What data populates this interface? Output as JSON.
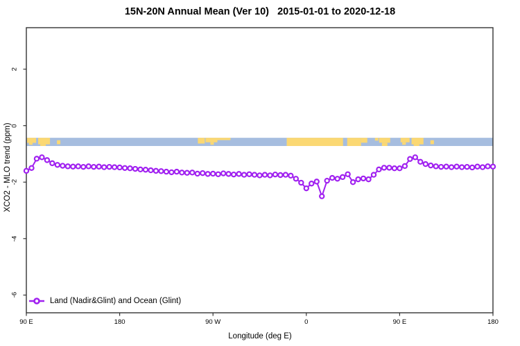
{
  "title": "15N-20N Annual Mean (Ver 10)   2015-01-01 to 2020-12-18",
  "chart_data": {
    "type": "line",
    "title": "15N-20N Annual Mean (Ver 10)   2015-01-01 to 2020-12-18",
    "xlabel": "Longitude (deg E)",
    "ylabel": "XCO2 - MLO trend (ppm)",
    "xlim": [
      90,
      540
    ],
    "ylim": [
      -6.8,
      3.4
    ],
    "grid": false,
    "x_ticks": [
      {
        "lon": 90,
        "label": "90 E"
      },
      {
        "lon": 180,
        "label": "180"
      },
      {
        "lon": 270,
        "label": "90 W"
      },
      {
        "lon": 360,
        "label": "0"
      },
      {
        "lon": 450,
        "label": "90 E"
      },
      {
        "lon": 540,
        "label": "180"
      }
    ],
    "y_ticks": [
      {
        "value": 2,
        "label": "2"
      },
      {
        "value": 0,
        "label": "0"
      },
      {
        "value": -2,
        "label": "-2"
      },
      {
        "value": -4,
        "label": "-4"
      },
      {
        "value": -6,
        "label": "-6"
      }
    ],
    "legend": {
      "position": "bottom-left",
      "entries": [
        {
          "label": "Land (Nadir&Glint) and Ocean (Glint)",
          "color": "#A020F0",
          "marker": "open-circle"
        }
      ]
    },
    "series": [
      {
        "name": "Land (Nadir&Glint) and Ocean (Glint)",
        "color": "#A020F0",
        "x": [
          90,
          95,
          100,
          105,
          110,
          115,
          120,
          125,
          130,
          135,
          140,
          145,
          150,
          155,
          160,
          165,
          170,
          175,
          180,
          185,
          190,
          195,
          200,
          205,
          210,
          215,
          220,
          225,
          230,
          235,
          240,
          245,
          250,
          255,
          260,
          265,
          270,
          275,
          280,
          285,
          290,
          295,
          300,
          305,
          310,
          315,
          320,
          325,
          330,
          335,
          340,
          345,
          350,
          355,
          360,
          365,
          370,
          375,
          380,
          385,
          390,
          395,
          400,
          405,
          410,
          415,
          420,
          425,
          430,
          435,
          440,
          445,
          450,
          455,
          460,
          465,
          470,
          475,
          480,
          485,
          490,
          495,
          500,
          505,
          510,
          515,
          520,
          525,
          530,
          535,
          540
        ],
        "values": [
          -1.6,
          -1.5,
          -1.17,
          -1.12,
          -1.22,
          -1.33,
          -1.39,
          -1.42,
          -1.44,
          -1.45,
          -1.44,
          -1.46,
          -1.44,
          -1.46,
          -1.45,
          -1.47,
          -1.46,
          -1.47,
          -1.48,
          -1.5,
          -1.51,
          -1.53,
          -1.55,
          -1.56,
          -1.58,
          -1.6,
          -1.61,
          -1.63,
          -1.65,
          -1.63,
          -1.66,
          -1.67,
          -1.66,
          -1.7,
          -1.68,
          -1.71,
          -1.7,
          -1.72,
          -1.69,
          -1.71,
          -1.73,
          -1.71,
          -1.74,
          -1.72,
          -1.74,
          -1.76,
          -1.74,
          -1.76,
          -1.73,
          -1.75,
          -1.74,
          -1.77,
          -1.88,
          -2.02,
          -2.22,
          -2.05,
          -1.98,
          -2.5,
          -1.95,
          -1.85,
          -1.88,
          -1.82,
          -1.72,
          -2.0,
          -1.9,
          -1.87,
          -1.9,
          -1.74,
          -1.55,
          -1.49,
          -1.49,
          -1.51,
          -1.51,
          -1.43,
          -1.18,
          -1.12,
          -1.28,
          -1.36,
          -1.41,
          -1.44,
          -1.46,
          -1.45,
          -1.47,
          -1.45,
          -1.47,
          -1.46,
          -1.48,
          -1.45,
          -1.47,
          -1.44,
          -1.45
        ]
      }
    ],
    "map_band": {
      "description": "land-ocean strip along 15N-20N latitude band",
      "value_range": [
        -0.43,
        -0.72
      ],
      "ocean_color": "#A6BDDF",
      "land_color": "#FBD873",
      "land_patches": [
        {
          "x1": 90.7,
          "x2": 99.4,
          "t": 0,
          "b": 0.62
        },
        {
          "x1": 92.5,
          "x2": 96.0,
          "t": 0.62,
          "b": 0.85
        },
        {
          "x1": 101.4,
          "x2": 112.8,
          "t": 0,
          "b": 0.8
        },
        {
          "x1": 103.4,
          "x2": 108.8,
          "t": 0.8,
          "b": 1
        },
        {
          "x1": 119.5,
          "x2": 122.8,
          "t": 0.3,
          "b": 0.78
        },
        {
          "x1": 255.4,
          "x2": 262.1,
          "t": 0,
          "b": 0.7
        },
        {
          "x1": 262.8,
          "x2": 274.2,
          "t": 0,
          "b": 0.55
        },
        {
          "x1": 267.5,
          "x2": 270.8,
          "t": 0.55,
          "b": 0.85
        },
        {
          "x1": 274.2,
          "x2": 286.9,
          "t": 0,
          "b": 0.28
        },
        {
          "x1": 341.1,
          "x2": 395.4,
          "t": 0,
          "b": 1
        },
        {
          "x1": 399.4,
          "x2": 412.8,
          "t": 0,
          "b": 1
        },
        {
          "x1": 412.8,
          "x2": 418.8,
          "t": 0,
          "b": 0.6
        },
        {
          "x1": 426.2,
          "x2": 429.5,
          "t": 0,
          "b": 0.35
        },
        {
          "x1": 430.2,
          "x2": 440.9,
          "t": 0,
          "b": 0.6
        },
        {
          "x1": 432.9,
          "x2": 438.2,
          "t": 0.6,
          "b": 1
        },
        {
          "x1": 450.9,
          "x2": 459.6,
          "t": 0,
          "b": 0.55
        },
        {
          "x1": 452.5,
          "x2": 456.0,
          "t": 0.55,
          "b": 0.85
        },
        {
          "x1": 461.5,
          "x2": 473.0,
          "t": 0,
          "b": 0.8
        },
        {
          "x1": 463.5,
          "x2": 469.0,
          "t": 0.8,
          "b": 1
        },
        {
          "x1": 479.7,
          "x2": 483.1,
          "t": 0.3,
          "b": 0.78
        }
      ]
    }
  }
}
